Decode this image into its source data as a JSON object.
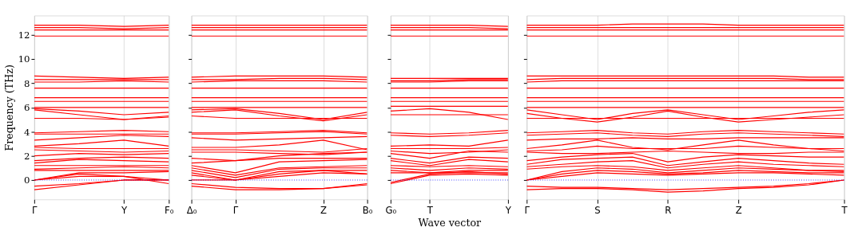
{
  "chart_data": [
    {
      "type": "line",
      "ylabel": "Frequency (THz)",
      "ylim": [
        -1.6,
        13.6
      ],
      "yticks": [
        0,
        2,
        4,
        6,
        8,
        10,
        12
      ],
      "grid": "x",
      "categories": [
        "Γ",
        null,
        "Y",
        "F₀"
      ],
      "ref_lines": [
        {
          "axis": "y",
          "value": 0,
          "color": "#0000ff",
          "line_style": "dotted"
        }
      ],
      "series": [
        {
          "color": "#ff0000",
          "values": [
            12.8,
            12.8,
            12.7,
            12.8
          ]
        },
        {
          "color": "#ff0000",
          "values": [
            12.6,
            12.6,
            12.5,
            12.6
          ]
        },
        {
          "color": "#ff0000",
          "values": [
            12.4,
            12.4,
            12.4,
            12.4
          ]
        },
        {
          "color": "#ff0000",
          "values": [
            11.9,
            11.9,
            11.9,
            11.9
          ]
        },
        {
          "color": "#ff0000",
          "values": [
            8.6,
            8.5,
            8.4,
            8.5
          ]
        },
        {
          "color": "#ff0000",
          "values": [
            8.3,
            8.3,
            8.3,
            8.3
          ]
        },
        {
          "color": "#ff0000",
          "values": [
            8.1,
            8.1,
            8.2,
            8.1
          ]
        },
        {
          "color": "#ff0000",
          "values": [
            7.6,
            7.6,
            7.6,
            7.6
          ]
        },
        {
          "color": "#ff0000",
          "values": [
            6.8,
            6.8,
            6.8,
            6.8
          ]
        },
        {
          "color": "#ff0000",
          "values": [
            6.5,
            6.5,
            6.5,
            6.5
          ]
        },
        {
          "color": "#ff0000",
          "values": [
            6.0,
            6.0,
            6.0,
            6.0
          ]
        },
        {
          "color": "#ff0000",
          "values": [
            5.9,
            5.7,
            5.4,
            5.6
          ]
        },
        {
          "color": "#ff0000",
          "values": [
            5.8,
            5.4,
            5.0,
            5.3
          ]
        },
        {
          "color": "#ff0000",
          "values": [
            5.1,
            5.1,
            5.0,
            5.2
          ]
        },
        {
          "color": "#ff0000",
          "values": [
            3.9,
            4.0,
            4.1,
            4.0
          ]
        },
        {
          "color": "#ff0000",
          "values": [
            3.8,
            3.8,
            3.8,
            3.8
          ]
        },
        {
          "color": "#ff0000",
          "values": [
            3.3,
            3.5,
            3.7,
            3.6
          ]
        },
        {
          "color": "#ff0000",
          "values": [
            2.8,
            3.0,
            3.3,
            2.8
          ]
        },
        {
          "color": "#ff0000",
          "values": [
            2.7,
            2.6,
            2.6,
            2.6
          ]
        },
        {
          "color": "#ff0000",
          "values": [
            2.5,
            2.4,
            2.3,
            2.4
          ]
        },
        {
          "color": "#ff0000",
          "values": [
            2.0,
            2.2,
            2.1,
            2.2
          ]
        },
        {
          "color": "#ff0000",
          "values": [
            1.6,
            1.8,
            1.9,
            1.8
          ]
        },
        {
          "color": "#ff0000",
          "values": [
            1.4,
            1.7,
            1.6,
            1.5
          ]
        },
        {
          "color": "#ff0000",
          "values": [
            1.2,
            1.2,
            1.2,
            1.2
          ]
        },
        {
          "color": "#ff0000",
          "values": [
            0.9,
            1.0,
            1.1,
            1.0
          ]
        },
        {
          "color": "#ff0000",
          "values": [
            0.8,
            0.8,
            0.8,
            0.8
          ]
        },
        {
          "color": "#ff0000",
          "values": [
            0.0,
            0.6,
            0.6,
            0.7
          ]
        },
        {
          "color": "#ff0000",
          "values": [
            0.0,
            0.5,
            0.3,
            0.0
          ]
        },
        {
          "color": "#ff0000",
          "values": [
            0.0,
            0.3,
            0.3,
            -0.3
          ]
        },
        {
          "color": "#ff0000",
          "values": [
            -0.5,
            -0.3,
            0.0,
            0.0
          ]
        },
        {
          "color": "#ff0000",
          "values": [
            -0.8,
            -0.4,
            0.0,
            0.0
          ]
        }
      ]
    },
    {
      "type": "line",
      "ylim": [
        -1.6,
        13.6
      ],
      "yticks": [
        0,
        2,
        4,
        6,
        8,
        10,
        12
      ],
      "grid": "x",
      "tick_labels": "x",
      "categories": [
        "Δ₀",
        "Γ",
        null,
        "Z",
        "B₀"
      ],
      "ref_lines": [
        {
          "axis": "y",
          "value": 0,
          "color": "#0000ff",
          "line_style": "dotted"
        }
      ],
      "series": [
        {
          "color": "#ff0000",
          "values": [
            12.8,
            12.8,
            12.8,
            12.8,
            12.8
          ]
        },
        {
          "color": "#ff0000",
          "values": [
            12.6,
            12.6,
            12.6,
            12.6,
            12.6
          ]
        },
        {
          "color": "#ff0000",
          "values": [
            12.4,
            12.4,
            12.4,
            12.4,
            12.4
          ]
        },
        {
          "color": "#ff0000",
          "values": [
            11.9,
            11.9,
            11.9,
            11.9,
            11.9
          ]
        },
        {
          "color": "#ff0000",
          "values": [
            8.5,
            8.6,
            8.6,
            8.6,
            8.5
          ]
        },
        {
          "color": "#ff0000",
          "values": [
            8.3,
            8.3,
            8.4,
            8.4,
            8.3
          ]
        },
        {
          "color": "#ff0000",
          "values": [
            8.1,
            8.2,
            8.2,
            8.2,
            8.1
          ]
        },
        {
          "color": "#ff0000",
          "values": [
            7.6,
            7.6,
            7.6,
            7.6,
            7.6
          ]
        },
        {
          "color": "#ff0000",
          "values": [
            6.8,
            6.8,
            6.8,
            6.8,
            6.8
          ]
        },
        {
          "color": "#ff0000",
          "values": [
            6.5,
            6.5,
            6.5,
            6.5,
            6.5
          ]
        },
        {
          "color": "#ff0000",
          "values": [
            6.0,
            6.0,
            6.0,
            6.0,
            6.0
          ]
        },
        {
          "color": "#ff0000",
          "values": [
            5.8,
            5.9,
            5.5,
            5.0,
            5.6
          ]
        },
        {
          "color": "#ff0000",
          "values": [
            5.6,
            5.8,
            5.3,
            4.9,
            5.4
          ]
        },
        {
          "color": "#ff0000",
          "values": [
            5.3,
            5.1,
            5.1,
            5.1,
            5.1
          ]
        },
        {
          "color": "#ff0000",
          "values": [
            3.9,
            3.9,
            4.0,
            4.1,
            3.9
          ]
        },
        {
          "color": "#ff0000",
          "values": [
            3.8,
            3.8,
            3.9,
            4.0,
            3.8
          ]
        },
        {
          "color": "#ff0000",
          "values": [
            3.5,
            3.3,
            3.4,
            3.5,
            3.6
          ]
        },
        {
          "color": "#ff0000",
          "values": [
            2.7,
            2.7,
            2.9,
            3.3,
            2.5
          ]
        },
        {
          "color": "#ff0000",
          "values": [
            2.5,
            2.5,
            2.4,
            2.3,
            2.6
          ]
        },
        {
          "color": "#ff0000",
          "values": [
            2.3,
            2.3,
            2.2,
            2.1,
            2.3
          ]
        },
        {
          "color": "#ff0000",
          "values": [
            1.8,
            1.6,
            2.0,
            2.2,
            2.3
          ]
        },
        {
          "color": "#ff0000",
          "values": [
            1.4,
            1.6,
            1.8,
            1.8,
            1.8
          ]
        },
        {
          "color": "#ff0000",
          "values": [
            1.2,
            0.6,
            1.5,
            1.6,
            1.7
          ]
        },
        {
          "color": "#ff0000",
          "values": [
            1.0,
            0.4,
            1.0,
            1.1,
            1.2
          ]
        },
        {
          "color": "#ff0000",
          "values": [
            0.8,
            0.2,
            0.9,
            1.0,
            1.0
          ]
        },
        {
          "color": "#ff0000",
          "values": [
            0.6,
            0.0,
            0.7,
            0.8,
            0.8
          ]
        },
        {
          "color": "#ff0000",
          "values": [
            0.4,
            0.0,
            0.5,
            0.8,
            0.5
          ]
        },
        {
          "color": "#ff0000",
          "values": [
            0.0,
            0.0,
            0.3,
            0.6,
            0.5
          ]
        },
        {
          "color": "#ff0000",
          "values": [
            -0.3,
            -0.6,
            -0.7,
            -0.7,
            -0.3
          ]
        },
        {
          "color": "#ff0000",
          "values": [
            -0.5,
            -0.8,
            -0.8,
            -0.7,
            -0.4
          ]
        }
      ]
    },
    {
      "type": "line",
      "xlabel": "Wave vector",
      "ylim": [
        -1.6,
        13.6
      ],
      "yticks": [
        0,
        2,
        4,
        6,
        8,
        10,
        12
      ],
      "grid": "x",
      "tick_labels": "x",
      "categories": [
        "G₀",
        "T",
        null,
        "Y"
      ],
      "ref_lines": [
        {
          "axis": "y",
          "value": 0,
          "color": "#0000ff",
          "line_style": "dotted"
        }
      ],
      "series": [
        {
          "color": "#ff0000",
          "values": [
            12.8,
            12.8,
            12.8,
            12.7
          ]
        },
        {
          "color": "#ff0000",
          "values": [
            12.6,
            12.6,
            12.6,
            12.5
          ]
        },
        {
          "color": "#ff0000",
          "values": [
            12.4,
            12.4,
            12.4,
            12.4
          ]
        },
        {
          "color": "#ff0000",
          "values": [
            11.9,
            11.9,
            11.9,
            11.9
          ]
        },
        {
          "color": "#ff0000",
          "values": [
            8.4,
            8.4,
            8.4,
            8.4
          ]
        },
        {
          "color": "#ff0000",
          "values": [
            8.2,
            8.2,
            8.3,
            8.3
          ]
        },
        {
          "color": "#ff0000",
          "values": [
            8.1,
            8.1,
            8.2,
            8.2
          ]
        },
        {
          "color": "#ff0000",
          "values": [
            7.6,
            7.6,
            7.6,
            7.6
          ]
        },
        {
          "color": "#ff0000",
          "values": [
            6.8,
            6.8,
            6.8,
            6.8
          ]
        },
        {
          "color": "#ff0000",
          "values": [
            6.5,
            6.5,
            6.5,
            6.5
          ]
        },
        {
          "color": "#ff0000",
          "values": [
            6.1,
            6.1,
            6.1,
            6.1
          ]
        },
        {
          "color": "#ff0000",
          "values": [
            5.7,
            5.9,
            5.6,
            5.0
          ]
        },
        {
          "color": "#ff0000",
          "values": [
            5.4,
            5.4,
            5.4,
            5.4
          ]
        },
        {
          "color": "#ff0000",
          "values": [
            3.9,
            3.8,
            3.9,
            4.1
          ]
        },
        {
          "color": "#ff0000",
          "values": [
            3.7,
            3.6,
            3.7,
            3.9
          ]
        },
        {
          "color": "#ff0000",
          "values": [
            2.8,
            2.9,
            2.8,
            3.3
          ]
        },
        {
          "color": "#ff0000",
          "values": [
            2.6,
            2.6,
            2.6,
            2.7
          ]
        },
        {
          "color": "#ff0000",
          "values": [
            2.4,
            2.2,
            2.3,
            2.5
          ]
        },
        {
          "color": "#ff0000",
          "values": [
            2.2,
            1.8,
            2.4,
            2.3
          ]
        },
        {
          "color": "#ff0000",
          "values": [
            1.8,
            1.4,
            1.9,
            1.8
          ]
        },
        {
          "color": "#ff0000",
          "values": [
            1.6,
            1.2,
            1.7,
            1.5
          ]
        },
        {
          "color": "#ff0000",
          "values": [
            1.2,
            1.1,
            1.2,
            1.1
          ]
        },
        {
          "color": "#ff0000",
          "values": [
            1.0,
            0.8,
            1.0,
            0.9
          ]
        },
        {
          "color": "#ff0000",
          "values": [
            0.8,
            0.6,
            0.8,
            0.8
          ]
        },
        {
          "color": "#ff0000",
          "values": [
            0.6,
            0.6,
            0.6,
            0.6
          ]
        },
        {
          "color": "#ff0000",
          "values": [
            -0.2,
            0.5,
            0.7,
            0.5
          ]
        },
        {
          "color": "#ff0000",
          "values": [
            -0.3,
            0.4,
            0.5,
            0.4
          ]
        }
      ]
    },
    {
      "type": "line",
      "ylim": [
        -1.6,
        13.6
      ],
      "yticks": [
        0,
        2,
        4,
        6,
        8,
        10,
        12
      ],
      "grid": "x",
      "tick_labels": "x",
      "categories": [
        "Γ",
        null,
        "S",
        null,
        "R",
        null,
        "Z",
        null,
        null,
        "T"
      ],
      "ref_lines": [
        {
          "axis": "y",
          "value": 0,
          "color": "#0000ff",
          "line_style": "dotted"
        }
      ],
      "series": [
        {
          "color": "#ff0000",
          "values": [
            12.8,
            12.8,
            12.8,
            12.9,
            12.9,
            12.9,
            12.8,
            12.8,
            12.8,
            12.8
          ]
        },
        {
          "color": "#ff0000",
          "values": [
            12.6,
            12.6,
            12.6,
            12.6,
            12.6,
            12.6,
            12.6,
            12.6,
            12.6,
            12.6
          ]
        },
        {
          "color": "#ff0000",
          "values": [
            12.4,
            12.4,
            12.4,
            12.4,
            12.4,
            12.4,
            12.4,
            12.4,
            12.4,
            12.4
          ]
        },
        {
          "color": "#ff0000",
          "values": [
            11.9,
            11.9,
            11.9,
            11.9,
            11.9,
            11.9,
            11.9,
            11.9,
            11.9,
            11.9
          ]
        },
        {
          "color": "#ff0000",
          "values": [
            8.6,
            8.6,
            8.6,
            8.6,
            8.6,
            8.6,
            8.6,
            8.6,
            8.5,
            8.5
          ]
        },
        {
          "color": "#ff0000",
          "values": [
            8.3,
            8.4,
            8.4,
            8.4,
            8.4,
            8.4,
            8.4,
            8.4,
            8.3,
            8.3
          ]
        },
        {
          "color": "#ff0000",
          "values": [
            8.1,
            8.2,
            8.2,
            8.2,
            8.2,
            8.2,
            8.2,
            8.2,
            8.2,
            8.2
          ]
        },
        {
          "color": "#ff0000",
          "values": [
            7.6,
            7.6,
            7.6,
            7.6,
            7.6,
            7.6,
            7.6,
            7.6,
            7.6,
            7.6
          ]
        },
        {
          "color": "#ff0000",
          "values": [
            6.8,
            6.8,
            6.8,
            6.8,
            6.8,
            6.8,
            6.8,
            6.8,
            6.8,
            6.8
          ]
        },
        {
          "color": "#ff0000",
          "values": [
            6.5,
            6.5,
            6.5,
            6.5,
            6.5,
            6.5,
            6.5,
            6.5,
            6.5,
            6.5
          ]
        },
        {
          "color": "#ff0000",
          "values": [
            6.0,
            6.0,
            6.0,
            6.0,
            6.0,
            6.0,
            6.0,
            6.0,
            6.0,
            6.0
          ]
        },
        {
          "color": "#ff0000",
          "values": [
            5.8,
            5.4,
            5.0,
            5.5,
            5.8,
            5.4,
            5.0,
            5.3,
            5.6,
            5.8
          ]
        },
        {
          "color": "#ff0000",
          "values": [
            5.5,
            5.1,
            4.8,
            5.2,
            5.7,
            5.2,
            4.8,
            5.0,
            5.2,
            5.4
          ]
        },
        {
          "color": "#ff0000",
          "values": [
            5.1,
            5.1,
            5.1,
            5.1,
            5.1,
            5.1,
            5.1,
            5.1,
            5.1,
            5.1
          ]
        },
        {
          "color": "#ff0000",
          "values": [
            3.9,
            4.0,
            4.1,
            3.9,
            3.8,
            4.0,
            4.1,
            4.0,
            3.9,
            3.8
          ]
        },
        {
          "color": "#ff0000",
          "values": [
            3.7,
            3.8,
            3.9,
            3.7,
            3.6,
            3.8,
            3.9,
            3.8,
            3.7,
            3.6
          ]
        },
        {
          "color": "#ff0000",
          "values": [
            3.3,
            3.4,
            3.4,
            3.5,
            3.4,
            3.4,
            3.5,
            3.5,
            3.5,
            3.5
          ]
        },
        {
          "color": "#ff0000",
          "values": [
            2.6,
            2.9,
            3.3,
            2.7,
            2.5,
            2.9,
            3.3,
            2.9,
            2.6,
            2.4
          ]
        },
        {
          "color": "#ff0000",
          "values": [
            2.4,
            2.5,
            2.8,
            2.6,
            2.6,
            2.6,
            2.8,
            2.7,
            2.6,
            2.6
          ]
        },
        {
          "color": "#ff0000",
          "values": [
            2.3,
            2.2,
            2.2,
            2.3,
            2.4,
            2.3,
            2.2,
            2.2,
            2.3,
            2.3
          ]
        },
        {
          "color": "#ff0000",
          "values": [
            1.6,
            1.9,
            2.1,
            2.2,
            1.5,
            1.9,
            2.1,
            2.0,
            1.9,
            1.9
          ]
        },
        {
          "color": "#ff0000",
          "values": [
            1.3,
            1.7,
            1.8,
            1.9,
            1.2,
            1.5,
            1.8,
            1.6,
            1.4,
            1.3
          ]
        },
        {
          "color": "#ff0000",
          "values": [
            1.1,
            1.3,
            1.5,
            1.6,
            1.0,
            1.3,
            1.5,
            1.3,
            1.2,
            1.1
          ]
        },
        {
          "color": "#ff0000",
          "values": [
            0.9,
            1.1,
            1.2,
            1.1,
            0.8,
            1.0,
            1.2,
            1.0,
            0.8,
            0.7
          ]
        },
        {
          "color": "#ff0000",
          "values": [
            0.0,
            0.7,
            1.0,
            0.9,
            0.6,
            0.8,
            1.0,
            0.9,
            0.8,
            0.8
          ]
        },
        {
          "color": "#ff0000",
          "values": [
            0.0,
            0.5,
            0.8,
            0.7,
            0.5,
            0.6,
            0.8,
            0.7,
            0.6,
            0.6
          ]
        },
        {
          "color": "#ff0000",
          "values": [
            0.0,
            0.3,
            0.6,
            0.5,
            0.4,
            0.5,
            0.6,
            0.6,
            0.5,
            0.4
          ]
        },
        {
          "color": "#ff0000",
          "values": [
            -0.5,
            -0.6,
            -0.6,
            -0.7,
            -0.8,
            -0.7,
            -0.6,
            -0.5,
            -0.3,
            0.0
          ]
        },
        {
          "color": "#ff0000",
          "values": [
            -0.8,
            -0.7,
            -0.7,
            -0.8,
            -1.0,
            -0.9,
            -0.7,
            -0.6,
            -0.4,
            0.0
          ]
        }
      ]
    }
  ]
}
